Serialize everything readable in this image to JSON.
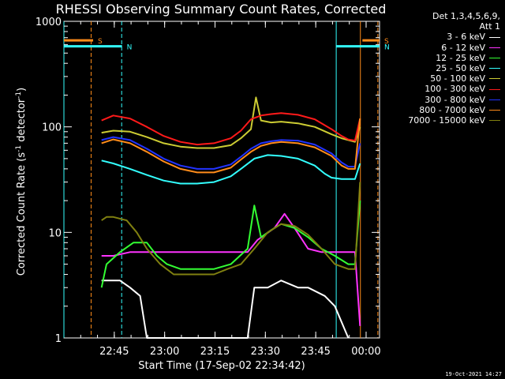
{
  "chart_data": {
    "type": "line",
    "title": "RHESSI Observing Summary Count Rates, Corrected",
    "xlabel": "Start Time (17-Sep-02 22:34:42)",
    "ylabel_parts": [
      "Corrected Count Rate (s",
      "-1",
      " detector",
      "-1",
      ")"
    ],
    "y_scale": "log",
    "ylim": [
      1,
      1000
    ],
    "xlim_minutes_after_start": [
      -4.7,
      89.3
    ],
    "x_ticks": [
      {
        "label": "22:45",
        "t": 10.3
      },
      {
        "label": "23:00",
        "t": 25.3
      },
      {
        "label": "23:15",
        "t": 40.3
      },
      {
        "label": "23:30",
        "t": 55.3
      },
      {
        "label": "23:45",
        "t": 70.3
      },
      {
        "label": "00:00",
        "t": 85.3
      }
    ],
    "y_ticks": [
      {
        "label": "1000",
        "v": 1000
      },
      {
        "label": "100",
        "v": 100
      },
      {
        "label": "10",
        "v": 10
      },
      {
        "label": "1",
        "v": 1
      }
    ],
    "flag_bars": [
      {
        "label": "S",
        "color": "#ff8c1a",
        "t0": -4.7,
        "t1": 4.0,
        "v": 660
      },
      {
        "label": "S",
        "color": "#ff8c1a",
        "t0": 84.2,
        "t1": 89.3,
        "v": 660
      },
      {
        "label": "N",
        "color": "#33ffff",
        "t0": -4.7,
        "t1": 12.6,
        "v": 580
      },
      {
        "label": "N",
        "color": "#33ffff",
        "t0": 76.4,
        "t1": 89.3,
        "v": 580
      }
    ],
    "vertical_markers": [
      {
        "t": -4.7,
        "color": "#33ffff",
        "style": "solid"
      },
      {
        "t": 3.4,
        "color": "#ff8c1a",
        "style": "dashed"
      },
      {
        "t": 12.5,
        "color": "#33ffff",
        "style": "dashed"
      },
      {
        "t": 76.4,
        "color": "#33ffff",
        "style": "solid"
      },
      {
        "t": 83.6,
        "color": "#ff8c1a",
        "style": "solid"
      },
      {
        "t": 88.8,
        "color": "#ff8c1a",
        "style": "dashed"
      }
    ],
    "series": [
      {
        "name": "3 - 6 keV",
        "color": "#ffffff",
        "t": [
          6.5,
          9,
          12,
          15,
          18,
          20,
          25,
          35,
          45,
          50,
          52,
          56,
          60,
          65,
          68,
          73,
          76,
          80
        ],
        "values": [
          3.5,
          3.5,
          3.5,
          3.0,
          2.5,
          1.0,
          1.0,
          1.0,
          1.0,
          1.0,
          3.0,
          3.0,
          3.5,
          3.0,
          3.0,
          2.5,
          2.0,
          1.0
        ]
      },
      {
        "name": "6 - 12 keV",
        "color": "#ff33ff",
        "t": [
          6.5,
          10,
          15,
          20,
          25,
          30,
          35,
          40,
          45,
          50,
          53,
          58,
          61,
          64,
          68,
          72,
          76,
          80,
          82,
          83.5
        ],
        "values": [
          6,
          6,
          6.5,
          6.5,
          6.5,
          6.5,
          6.5,
          6.5,
          6.5,
          6.5,
          8.5,
          11,
          15,
          11,
          7,
          6.5,
          6.5,
          6.5,
          6.5,
          1.3
        ]
      },
      {
        "name": "12 - 25 keV",
        "color": "#33ff33",
        "t": [
          6.5,
          8,
          12,
          16,
          20,
          23,
          26,
          30,
          35,
          40,
          45,
          50,
          52,
          54,
          57,
          60,
          64,
          68,
          72,
          76,
          80,
          82,
          83.5
        ],
        "values": [
          3,
          5,
          6.5,
          8,
          8,
          6,
          5,
          4.5,
          4.5,
          4.5,
          5,
          7,
          18,
          9,
          10.5,
          12,
          11,
          9,
          7,
          6,
          5,
          5,
          20
        ]
      },
      {
        "name": "25 - 50 keV",
        "color": "#33ffff",
        "t": [
          6.5,
          10,
          15,
          20,
          25,
          30,
          35,
          40,
          45,
          48,
          52,
          56,
          60,
          65,
          70,
          73,
          75,
          78,
          82,
          83.5
        ],
        "values": [
          48,
          45,
          40,
          35,
          31,
          29,
          29,
          30,
          34,
          40,
          50,
          54,
          53,
          50,
          43,
          36,
          33,
          32,
          32,
          45
        ]
      },
      {
        "name": "50 - 100 keV",
        "color": "#cccc33",
        "t": [
          6.5,
          10,
          15,
          20,
          25,
          30,
          35,
          40,
          45,
          48,
          51,
          52.5,
          54,
          57,
          60,
          65,
          70,
          75,
          78,
          82,
          83.5
        ],
        "values": [
          88,
          92,
          90,
          80,
          70,
          65,
          63,
          63,
          67,
          78,
          95,
          190,
          115,
          110,
          112,
          108,
          100,
          85,
          78,
          72,
          100
        ]
      },
      {
        "name": "100 - 300 keV",
        "color": "#ff1a1a",
        "t": [
          6.5,
          10,
          15,
          20,
          25,
          30,
          35,
          40,
          45,
          48,
          51,
          54,
          57,
          60,
          65,
          70,
          75,
          78,
          80,
          82,
          83.5
        ],
        "values": [
          115,
          128,
          120,
          100,
          82,
          72,
          68,
          70,
          78,
          92,
          118,
          128,
          132,
          135,
          130,
          118,
          95,
          82,
          76,
          74,
          120
        ]
      },
      {
        "name": "300 - 800 keV",
        "color": "#2233ff",
        "t": [
          6.5,
          10,
          15,
          20,
          25,
          30,
          35,
          40,
          45,
          48,
          51,
          54,
          57,
          60,
          65,
          70,
          75,
          78,
          80,
          82,
          83.5
        ],
        "values": [
          75,
          80,
          75,
          62,
          50,
          43,
          40,
          40,
          44,
          52,
          62,
          70,
          73,
          75,
          74,
          68,
          56,
          46,
          42,
          42,
          70
        ]
      },
      {
        "name": "800 - 7000 keV",
        "color": "#ff8c1a",
        "t": [
          6.5,
          10,
          15,
          20,
          25,
          30,
          35,
          40,
          45,
          48,
          51,
          54,
          57,
          60,
          65,
          70,
          75,
          78,
          80,
          82,
          83.5
        ],
        "values": [
          70,
          76,
          70,
          58,
          47,
          40,
          37,
          37,
          41,
          49,
          58,
          66,
          70,
          72,
          70,
          64,
          53,
          43,
          40,
          40,
          120
        ]
      },
      {
        "name": "7000 - 15000 keV",
        "color": "#808010",
        "t": [
          6.5,
          8,
          10,
          14,
          17,
          20,
          24,
          28,
          32,
          36,
          40,
          44,
          48,
          52,
          56,
          60,
          64,
          68,
          72,
          76,
          80,
          82,
          83.5
        ],
        "values": [
          13,
          14,
          14,
          13,
          10,
          7,
          5,
          4,
          4,
          4,
          4,
          4.5,
          5,
          7,
          10,
          12,
          11.5,
          9.5,
          7,
          5,
          4.5,
          4.5,
          30
        ]
      }
    ]
  },
  "legend": {
    "header_lines": [
      "Det 1,3,4,5,6,9,",
      "Att 1"
    ]
  },
  "footer": {
    "timestamp": "19-Oct-2021 14:27"
  }
}
